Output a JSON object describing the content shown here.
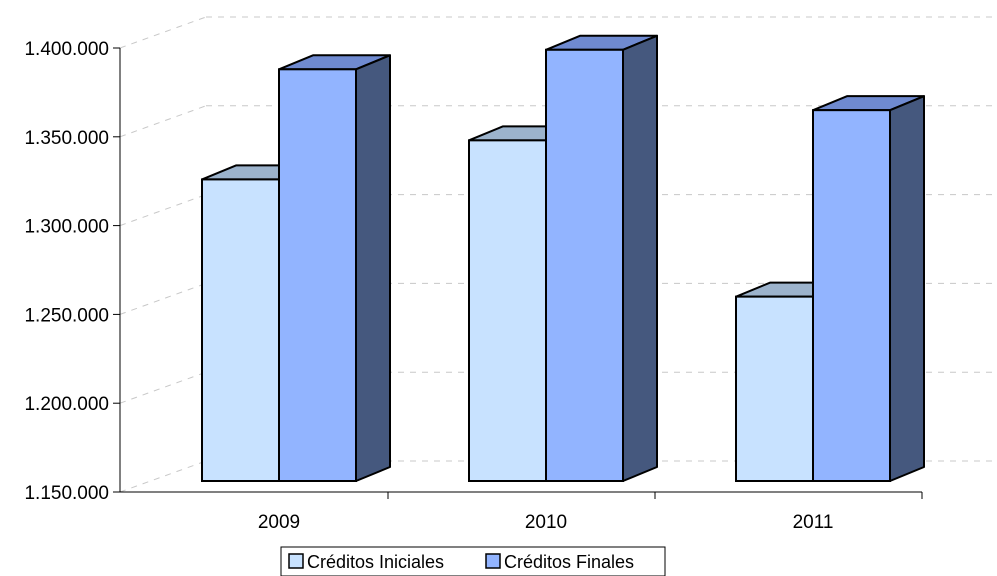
{
  "chart_data": {
    "type": "bar",
    "categories": [
      "2009",
      "2010",
      "2011"
    ],
    "series": [
      {
        "name": "Créditos Iniciales",
        "values": [
          1326000,
          1348000,
          1260000
        ]
      },
      {
        "name": "Créditos Finales",
        "values": [
          1388000,
          1399000,
          1365000
        ]
      }
    ],
    "y_ticks": [
      1150000,
      1200000,
      1250000,
      1300000,
      1350000,
      1400000
    ],
    "y_tick_labels": [
      "1.150.000",
      "1.200.000",
      "1.250.000",
      "1.300.000",
      "1.350.000",
      "1.400.000"
    ],
    "ylim": [
      1150000,
      1400000
    ],
    "grid": true,
    "legend": "bottom",
    "colors": {
      "series1_front": "#c8e2ff",
      "series1_top": "#9cb3cc",
      "series2_front": "#92b4ff",
      "series2_top": "#6f8ad0",
      "side": "#45587e",
      "outline": "#000000",
      "grid": "#c8c8c8"
    }
  }
}
